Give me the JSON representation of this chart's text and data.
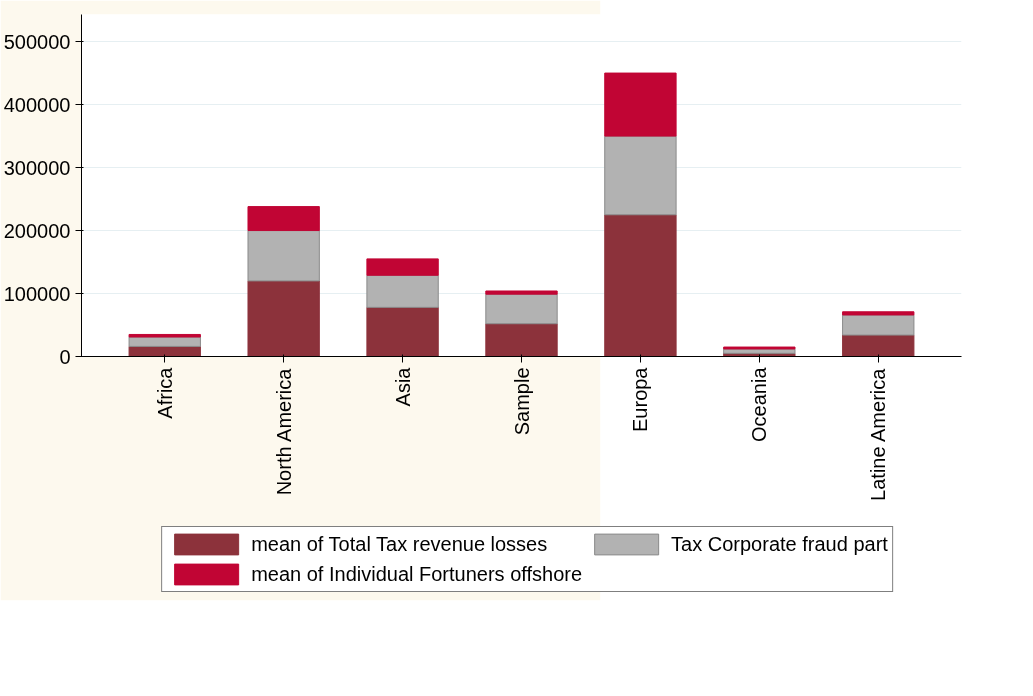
{
  "chart_data": {
    "type": "bar",
    "stacked": true,
    "categories": [
      "Africa",
      "North America",
      "Asia",
      "Sample",
      "Europa",
      "Oceania",
      "Latine America"
    ],
    "series": [
      {
        "name": "mean of Total Tax revenue losses",
        "color": "#8c323b",
        "values": [
          16000,
          120000,
          78000,
          52000,
          225000,
          5000,
          34000
        ]
      },
      {
        "name": "Tax Corporate fraud part",
        "color": "#b2b2b2",
        "values": [
          15000,
          80000,
          51000,
          47000,
          125000,
          7000,
          32000
        ]
      },
      {
        "name": "mean of Individual Fortuners offshore",
        "color": "#c10534",
        "values": [
          4000,
          38000,
          26000,
          5000,
          100000,
          3000,
          5000
        ]
      }
    ],
    "ylim": [
      0,
      543000
    ],
    "yticks": [
      0,
      100000,
      200000,
      300000,
      400000,
      500000
    ],
    "grid": "y",
    "legend": "bottom"
  }
}
